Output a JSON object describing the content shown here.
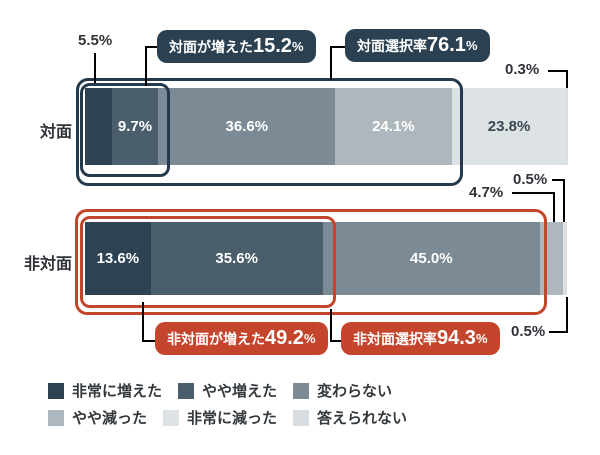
{
  "colors": {
    "badge_navy": "#2b4151",
    "badge_red": "#c4452c",
    "outline_navy": "#24394b",
    "outline_red": "#c2452c",
    "line_dark": "#2f3d49",
    "text_dark": "#2f3338",
    "seg_label_light": "#ffffff",
    "seg_label_dark": "#3a4750"
  },
  "legend": {
    "items": [
      {
        "label": "非常に増えた",
        "color": "#2d4252"
      },
      {
        "label": "やや増えた",
        "color": "#4a5e6c"
      },
      {
        "label": "変わらない",
        "color": "#7b8a94"
      },
      {
        "label": "やや減った",
        "color": "#aeb7bd"
      },
      {
        "label": "非常に減った",
        "color": "#dde2e5"
      },
      {
        "label": "答えられない",
        "color": "#d7dde0"
      }
    ]
  },
  "chart_data": {
    "type": "bar",
    "orientation": "horizontal",
    "stacked": true,
    "unit": "%",
    "xlim": [
      0,
      100
    ],
    "grid": false,
    "legend_position": "bottom",
    "categories": [
      "対面",
      "非対面"
    ],
    "series": [
      {
        "name": "非常に増えた",
        "values": [
          5.5,
          13.6
        ]
      },
      {
        "name": "やや増えた",
        "values": [
          9.7,
          35.6
        ]
      },
      {
        "name": "変わらない",
        "values": [
          36.6,
          45.0
        ]
      },
      {
        "name": "やや減った",
        "values": [
          24.1,
          4.7
        ]
      },
      {
        "name": "非常に減った",
        "values": [
          23.8,
          0.5
        ]
      },
      {
        "name": "答えられない",
        "values": [
          0.3,
          0.5
        ]
      }
    ],
    "rows": [
      {
        "label": "対面",
        "values": [
          5.5,
          9.7,
          36.6,
          24.1,
          23.8,
          0.3
        ],
        "inside_labels": [
          "",
          "9.7%",
          "36.6%",
          "24.1%",
          "23.8%",
          ""
        ],
        "inside_label_colors": [
          "",
          "#ffffff",
          "#ffffff",
          "#ffffff",
          "#3a4750",
          ""
        ]
      },
      {
        "label": "非対面",
        "values": [
          13.6,
          35.6,
          45.0,
          4.7,
          0.5,
          0.5
        ],
        "inside_labels": [
          "13.6%",
          "35.6%",
          "45.0%",
          "",
          "",
          ""
        ],
        "inside_label_colors": [
          "#ffffff",
          "#ffffff",
          "#ffffff",
          "",
          "",
          ""
        ]
      }
    ],
    "callouts": [
      "対面が増えた15.2%",
      "対面選択率76.1%",
      "非対面が増えた49.2%",
      "非対面選択率94.3%",
      "5.5%",
      "0.3%",
      "4.7%",
      "0.5%",
      "0.5%"
    ]
  },
  "annotations": {
    "row1": {
      "label_first": "5.5%",
      "label_last": "0.3%",
      "badge_increase": {
        "text": "対面が増えた",
        "value": "15.2",
        "unit": "%"
      },
      "badge_rate": {
        "text": "対面選択率",
        "value": "76.1",
        "unit": "%"
      }
    },
    "row2": {
      "label_seg4": "4.7%",
      "label_seg5": "0.5%",
      "label_seg6": "0.5%",
      "badge_increase": {
        "text": "非対面が増えた",
        "value": "49.2",
        "unit": "%"
      },
      "badge_rate": {
        "text": "非対面選択率",
        "value": "94.3",
        "unit": "%"
      }
    }
  }
}
